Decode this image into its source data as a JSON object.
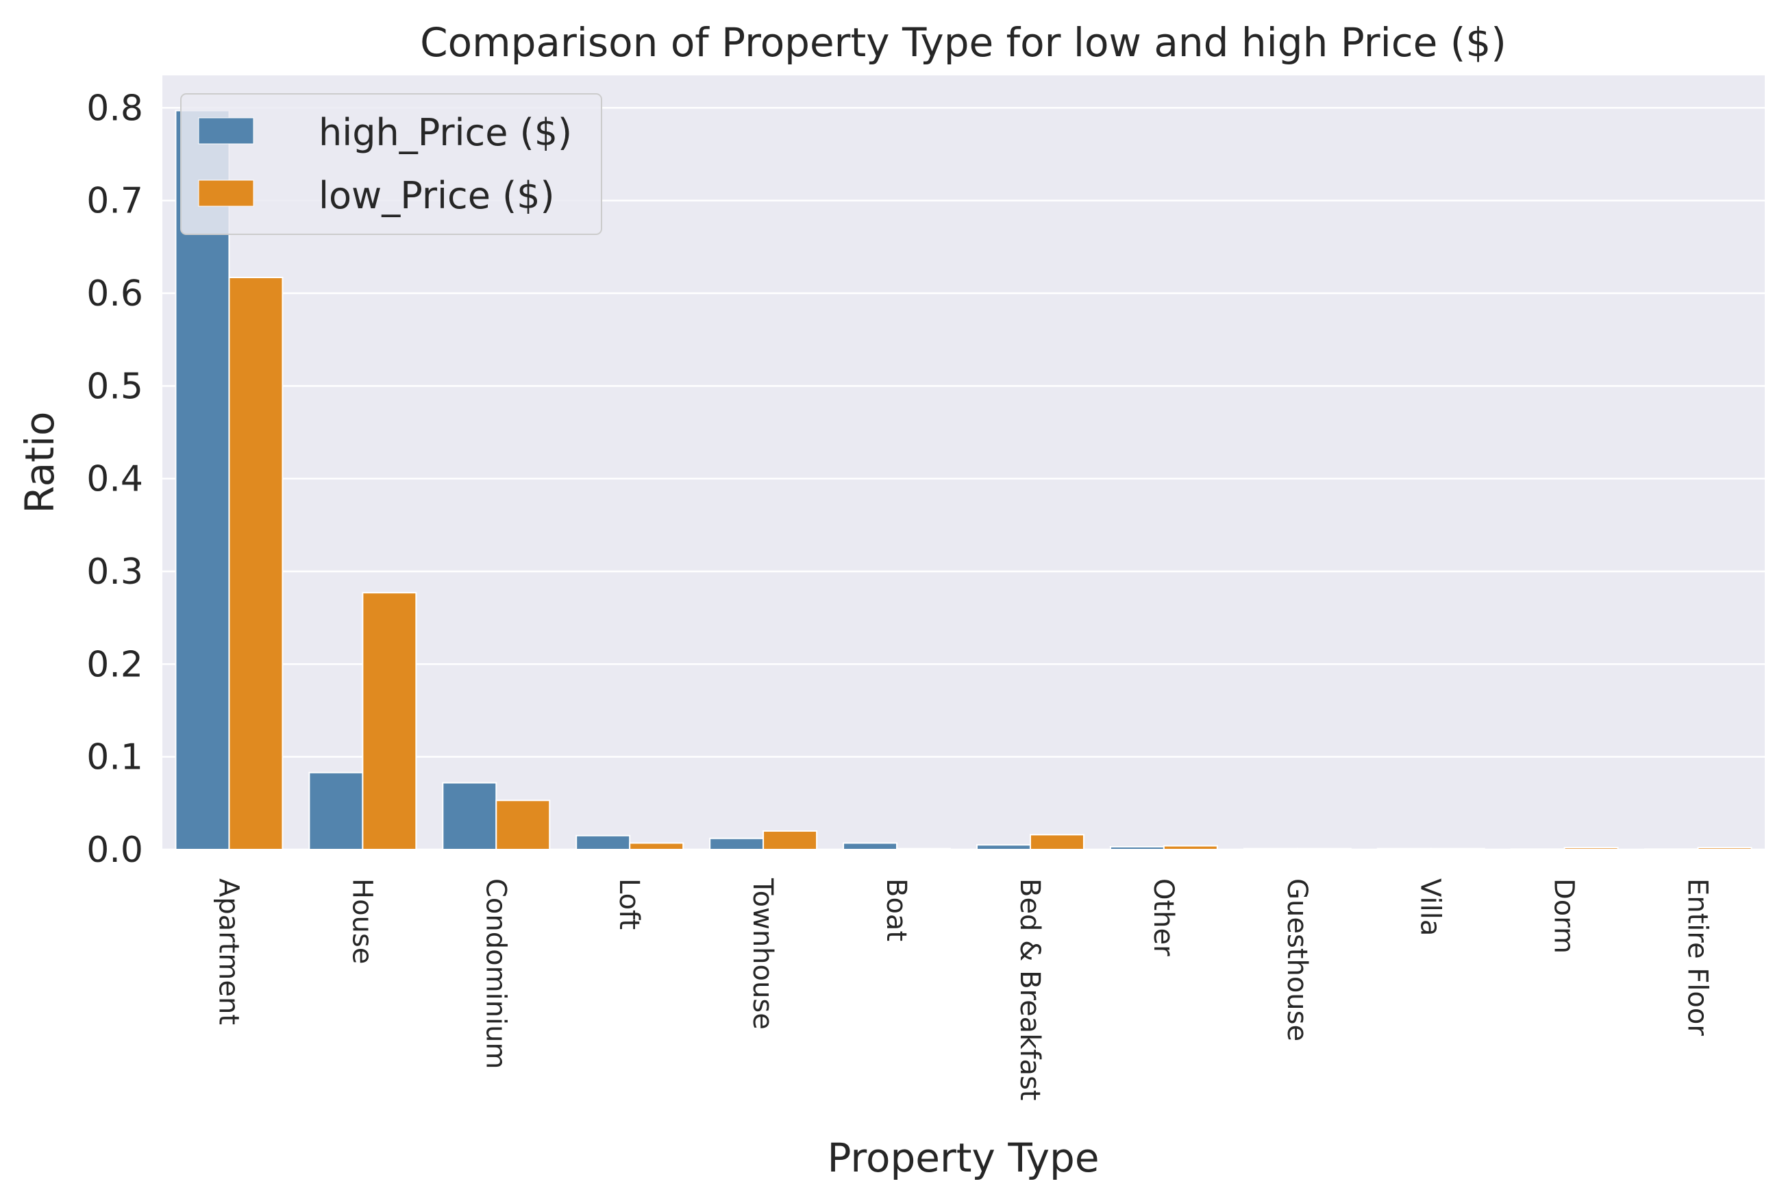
{
  "chart_data": {
    "type": "bar",
    "title": "Comparison of Property Type for low and high Price ($)",
    "xlabel": "Property Type",
    "ylabel": "Ratio",
    "categories": [
      "Apartment",
      "House",
      "Condominium",
      "Loft",
      "Townhouse",
      "Boat",
      "Bed & Breakfast",
      "Other",
      "Guesthouse",
      "Villa",
      "Dorm",
      "Entire Floor"
    ],
    "series": [
      {
        "name": "high_Price ($)",
        "color": "#5384ad",
        "values": [
          0.797,
          0.083,
          0.072,
          0.015,
          0.012,
          0.007,
          0.005,
          0.003,
          0.001,
          0.001,
          0.0005,
          0.0005
        ]
      },
      {
        "name": "low_Price ($)",
        "color": "#e08a20",
        "values": [
          0.617,
          0.277,
          0.053,
          0.007,
          0.02,
          0.001,
          0.016,
          0.004,
          0.001,
          0.001,
          0.002,
          0.002
        ]
      }
    ],
    "ylim": [
      0,
      0.835
    ],
    "yticks": [
      "0.0",
      "0.1",
      "0.2",
      "0.3",
      "0.4",
      "0.5",
      "0.6",
      "0.7",
      "0.8"
    ],
    "grid": true,
    "legend": "top-left",
    "background": "#eaeaf2"
  }
}
